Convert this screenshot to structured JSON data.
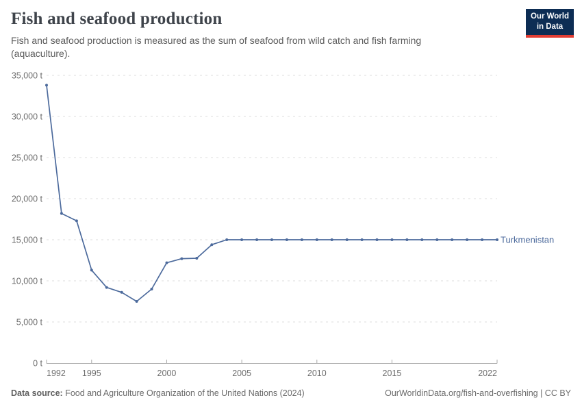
{
  "header": {
    "title": "Fish and seafood production",
    "subtitle": "Fish and seafood production is measured as the sum of seafood from wild catch and fish farming (aquaculture)."
  },
  "logo": {
    "line1": "Our World",
    "line2": "in Data"
  },
  "chart_data": {
    "type": "line",
    "title": "Fish and seafood production",
    "x": [
      1992,
      1993,
      1994,
      1995,
      1996,
      1997,
      1998,
      1999,
      2000,
      2001,
      2002,
      2003,
      2004,
      2005,
      2006,
      2007,
      2008,
      2009,
      2010,
      2011,
      2012,
      2013,
      2014,
      2015,
      2016,
      2017,
      2018,
      2019,
      2020,
      2021,
      2022
    ],
    "series": [
      {
        "name": "Turkmenistan",
        "color": "#4C6A9C",
        "values": [
          33800,
          18200,
          17300,
          11300,
          9200,
          8600,
          7500,
          9000,
          12200,
          12700,
          12750,
          14400,
          15000,
          15000,
          15000,
          15000,
          15000,
          15000,
          15000,
          15000,
          15000,
          15000,
          15000,
          15000,
          15000,
          15000,
          15000,
          15000,
          15000,
          15000,
          15000
        ]
      }
    ],
    "xlabel": "",
    "ylabel": "",
    "unit": "t",
    "ylim": [
      0,
      35000
    ],
    "yticks": [
      0,
      5000,
      10000,
      15000,
      20000,
      25000,
      30000,
      35000
    ],
    "ytick_labels": [
      "0 t",
      "5,000 t",
      "10,000 t",
      "15,000 t",
      "20,000 t",
      "25,000 t",
      "30,000 t",
      "35,000 t"
    ],
    "xticks": [
      1992,
      1995,
      2000,
      2005,
      2010,
      2015,
      2022
    ],
    "grid": "horizontal-dashed",
    "legend_position": "end-of-line",
    "marker": "circle"
  },
  "footer": {
    "source_label": "Data source:",
    "source_text": " Food and Agriculture Organization of the United Nations (2024)",
    "license_text": "OurWorldinData.org/fish-and-overfishing | CC BY"
  }
}
